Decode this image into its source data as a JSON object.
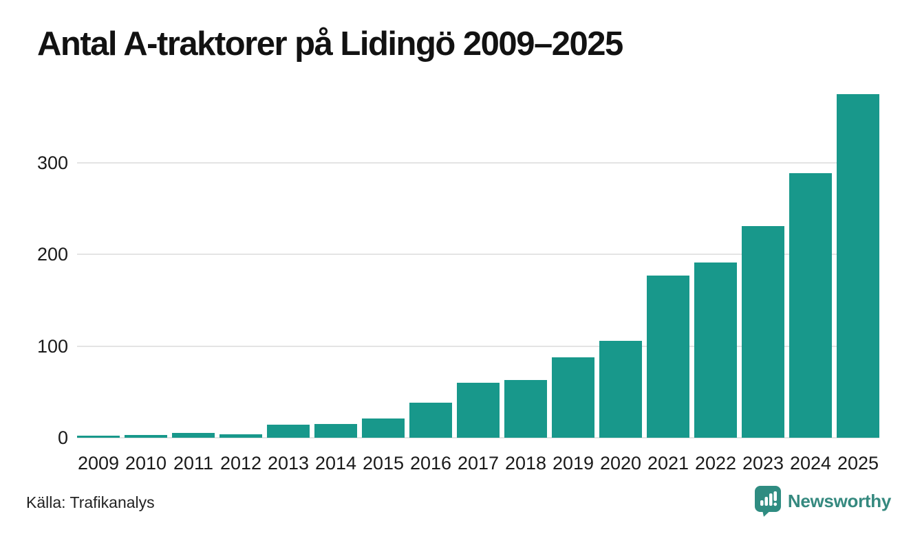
{
  "chart_data": {
    "type": "bar",
    "title": "Antal A-traktorer på Lidingö 2009–2025",
    "categories": [
      "2009",
      "2010",
      "2011",
      "2012",
      "2013",
      "2014",
      "2015",
      "2016",
      "2017",
      "2018",
      "2019",
      "2020",
      "2021",
      "2022",
      "2023",
      "2024",
      "2025"
    ],
    "values": [
      2,
      3,
      5,
      4,
      14,
      15,
      21,
      38,
      60,
      63,
      88,
      106,
      177,
      191,
      231,
      289,
      375
    ],
    "xlabel": "",
    "ylabel": "",
    "ylim": [
      0,
      375
    ],
    "yticks": [
      0,
      100,
      200,
      300
    ],
    "grid": "horizontal-gridlines",
    "legend": "none",
    "bar_color": "#18988b"
  },
  "footer": {
    "source": "Källa: Trafikanalys",
    "logo_text": "Newsworthy"
  },
  "colors": {
    "bar": "#18988b",
    "gridline": "#e4e4e4",
    "title": "#121212",
    "axis_label": "#1a1a1a",
    "logo_teal": "#35897f",
    "background": "#ffffff"
  }
}
